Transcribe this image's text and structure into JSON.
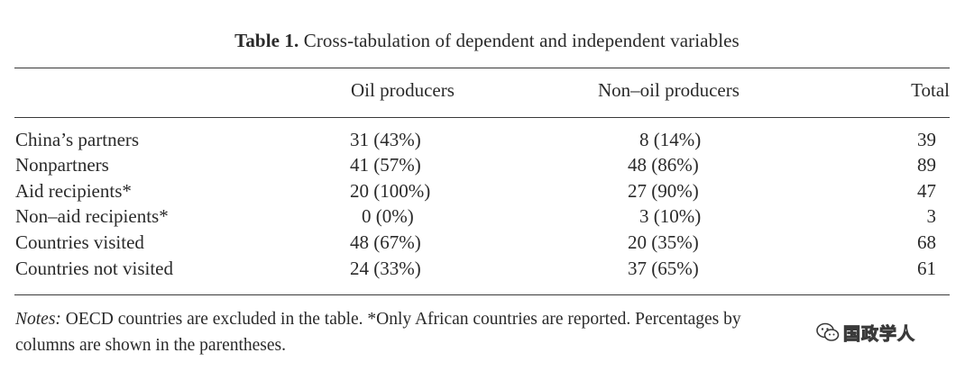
{
  "caption": {
    "label": "Table 1.",
    "text": " Cross-tabulation of dependent and independent variables"
  },
  "table": {
    "headers": {
      "oil": "Oil producers",
      "non_oil": "Non–oil producers",
      "total": "Total"
    },
    "rows": [
      {
        "label": "China’s partners",
        "oil": "31 (43%)",
        "non_oil": "8 (14%)",
        "total": "39"
      },
      {
        "label": "Nonpartners",
        "oil": "41 (57%)",
        "non_oil": "48 (86%)",
        "total": "89"
      },
      {
        "label": "Aid recipients*",
        "oil": "20 (100%)",
        "non_oil": "27 (90%)",
        "total": "47"
      },
      {
        "label": "Non–aid recipients*",
        "oil": "0 (0%)",
        "non_oil": "3 (10%)",
        "total": "3"
      },
      {
        "label": "Countries visited",
        "oil": "48 (67%)",
        "non_oil": "20 (35%)",
        "total": "68"
      },
      {
        "label": "Countries not visited",
        "oil": "24 (33%)",
        "non_oil": "37 (65%)",
        "total": "61"
      }
    ]
  },
  "notes": {
    "lead": "Notes:",
    "line1": " OECD countries are excluded in the table. *Only African countries are reported. Percentages by",
    "line2": "columns are shown in the parentheses."
  },
  "watermark": {
    "text": "国政学人",
    "icon": "wechat-icon"
  }
}
